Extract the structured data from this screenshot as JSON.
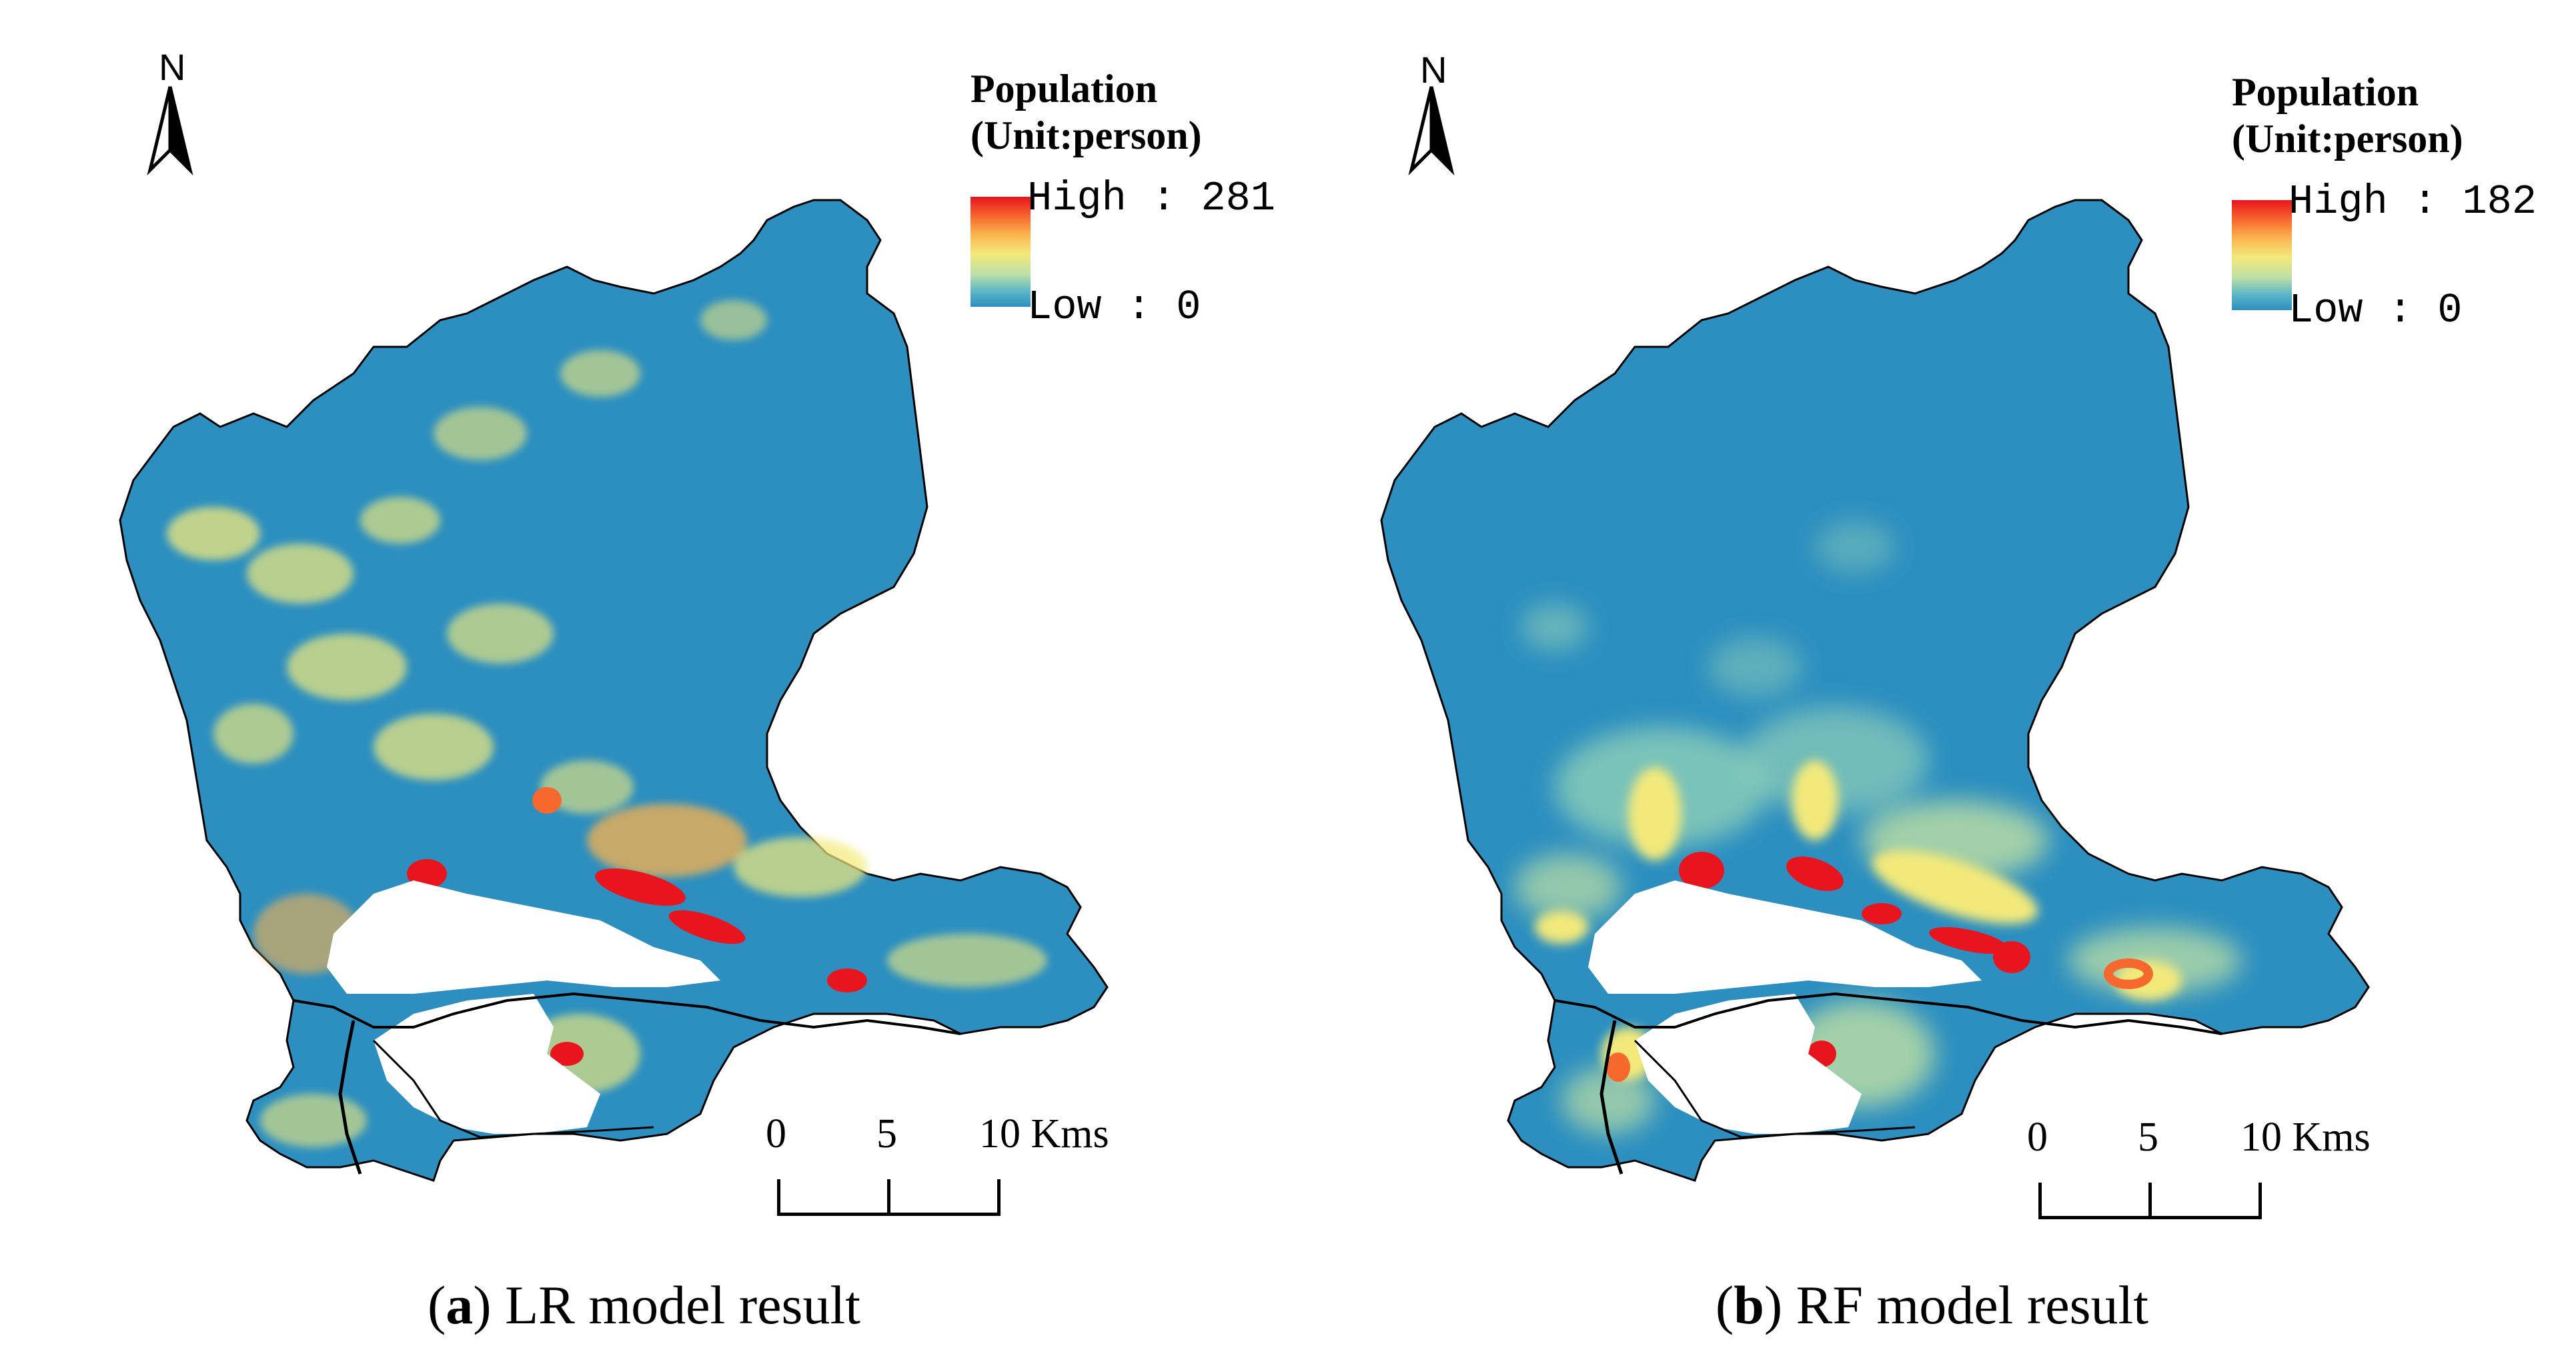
{
  "panels": [
    {
      "id": "a",
      "north_label": "N",
      "legend": {
        "title_line1": "Population",
        "title_line2": "(Unit:person)",
        "high_label": "High : 281",
        "low_label": "Low : 0"
      },
      "scale": {
        "ticks": [
          "0",
          "5",
          "10 Kms"
        ]
      },
      "caption": {
        "letter": "a",
        "text": " LR model result"
      }
    },
    {
      "id": "b",
      "north_label": "N",
      "legend": {
        "title_line1": "Population",
        "title_line2": "(Unit:person)",
        "high_label": "High : 182",
        "low_label": "Low : 0"
      },
      "scale": {
        "ticks": [
          "0",
          "5",
          "10 Kms"
        ]
      },
      "caption": {
        "letter": "b",
        "text": " RF model result"
      }
    }
  ],
  "colors": {
    "low": "#2c8fc0",
    "mid": "#f3e97a",
    "high": "#e8141e",
    "no_data": "#ffffff"
  }
}
